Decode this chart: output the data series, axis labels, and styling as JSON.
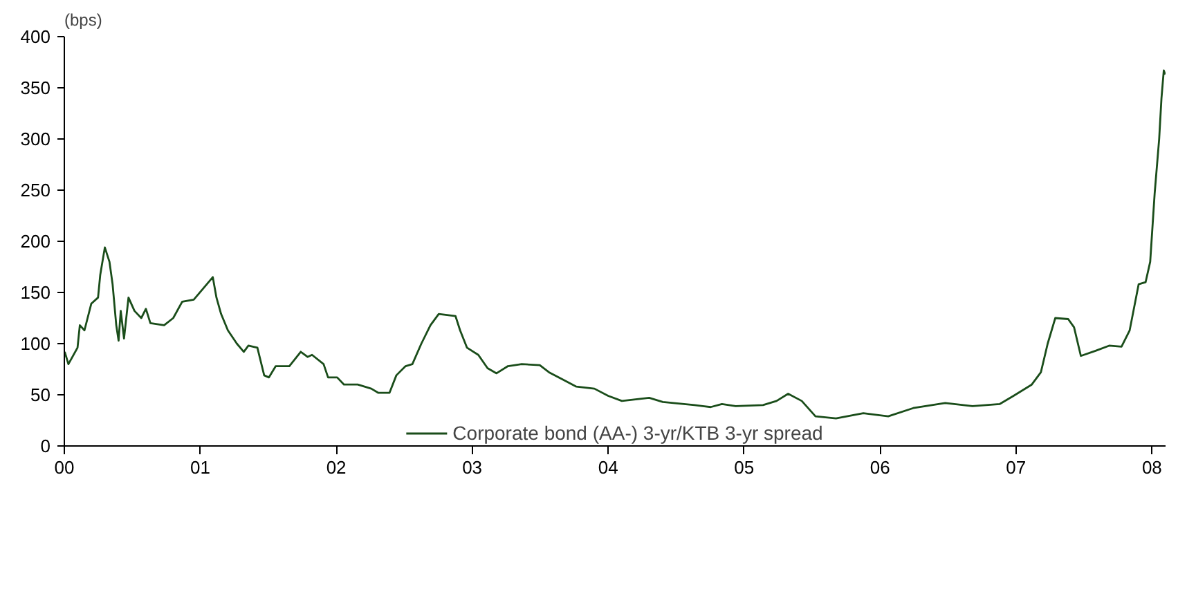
{
  "chart_data": {
    "type": "line",
    "ylabel": "(bps)",
    "x": [
      0.003,
      0.03,
      0.097,
      0.114,
      0.148,
      0.198,
      0.248,
      0.264,
      0.298,
      0.332,
      0.355,
      0.382,
      0.399,
      0.415,
      0.439,
      0.472,
      0.516,
      0.566,
      0.6,
      0.633,
      0.734,
      0.801,
      0.867,
      0.952,
      1.035,
      1.092,
      1.119,
      1.153,
      1.203,
      1.269,
      1.32,
      1.354,
      1.42,
      1.47,
      1.505,
      1.555,
      1.655,
      1.739,
      1.789,
      1.822,
      1.907,
      1.94,
      2.007,
      2.057,
      2.158,
      2.258,
      2.308,
      2.392,
      2.442,
      2.51,
      2.56,
      2.626,
      2.693,
      2.754,
      2.877,
      2.911,
      2.962,
      3.045,
      3.113,
      3.179,
      3.263,
      3.364,
      3.497,
      3.565,
      3.665,
      3.766,
      3.899,
      4.0,
      4.101,
      4.302,
      4.402,
      4.636,
      4.754,
      4.837,
      4.938,
      5.139,
      5.239,
      5.324,
      5.424,
      5.525,
      5.676,
      5.877,
      6.06,
      6.244,
      6.479,
      6.68,
      6.881,
      6.982,
      7.116,
      7.183,
      7.233,
      7.289,
      7.384,
      7.427,
      7.477,
      7.585,
      7.685,
      7.776,
      7.836,
      7.902,
      7.953,
      7.987,
      8.02,
      8.053,
      8.07,
      8.087,
      8.097
    ],
    "series": [
      {
        "name": "Corporate bond (AA-) 3-yr/KTB 3-yr spread",
        "color": "#1a4d1a",
        "values": [
          92,
          80,
          96,
          118,
          113,
          139,
          145,
          167,
          194,
          180,
          158,
          118,
          103,
          132,
          105,
          145,
          132,
          125,
          134,
          120,
          118,
          125,
          141,
          143,
          156,
          165,
          145,
          129,
          113,
          100,
          92,
          98,
          96,
          69,
          67,
          78,
          78,
          92,
          87,
          89,
          80,
          67,
          67,
          60,
          60,
          56,
          52,
          52,
          69,
          78,
          80,
          100,
          118,
          129,
          127,
          113,
          96,
          89,
          76,
          71,
          78,
          80,
          79,
          72,
          65,
          58,
          56,
          49,
          44,
          47,
          43,
          40,
          38,
          41,
          39,
          40,
          44,
          51,
          44,
          29,
          27,
          32,
          29,
          37,
          42,
          39,
          41,
          49,
          60,
          72,
          100,
          125,
          124,
          116,
          88,
          93,
          98,
          97,
          113,
          158,
          160,
          180,
          247,
          300,
          340,
          367,
          363
        ]
      }
    ],
    "xlim": [
      0,
      8.1
    ],
    "xticks": [
      {
        "value": 0,
        "label": "00"
      },
      {
        "value": 1,
        "label": "01"
      },
      {
        "value": 2,
        "label": "02"
      },
      {
        "value": 3,
        "label": "03"
      },
      {
        "value": 4,
        "label": "04"
      },
      {
        "value": 5,
        "label": "05"
      },
      {
        "value": 6,
        "label": "06"
      },
      {
        "value": 7,
        "label": "07"
      },
      {
        "value": 8,
        "label": "08"
      }
    ],
    "ylim": [
      0,
      400
    ],
    "yticks": [
      0,
      50,
      100,
      150,
      200,
      250,
      300,
      350,
      400
    ],
    "grid": false,
    "legend": "bottom",
    "line_style": "solid"
  }
}
